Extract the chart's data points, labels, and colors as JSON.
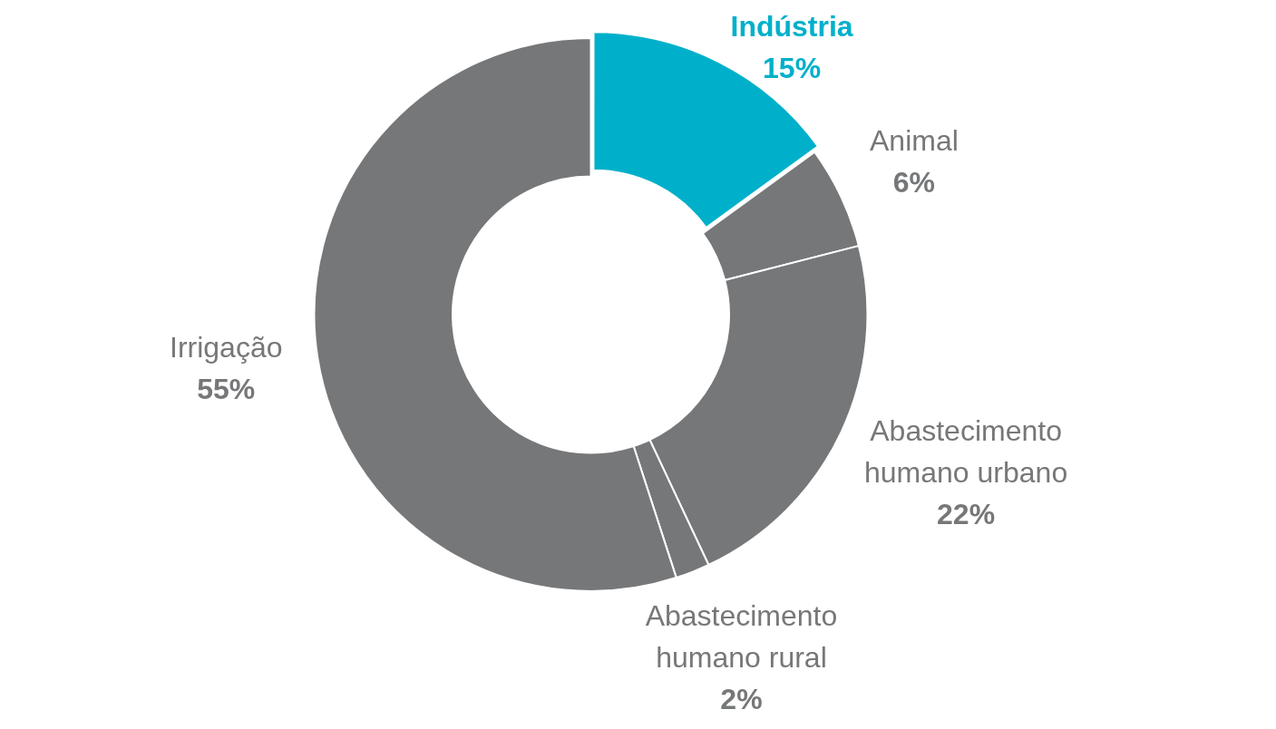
{
  "chart_data": {
    "type": "donut",
    "categories": [
      "Indústria",
      "Animal",
      "Abastecimento humano urbano",
      "Abastecimento humano rural",
      "Irrigação"
    ],
    "values": [
      15,
      6,
      22,
      2,
      55
    ],
    "value_labels": [
      "15%",
      "6%",
      "22%",
      "2%",
      "55%"
    ],
    "colors": [
      "#00b0ca",
      "#767779",
      "#767779",
      "#767779",
      "#767779"
    ],
    "legend": false
  }
}
